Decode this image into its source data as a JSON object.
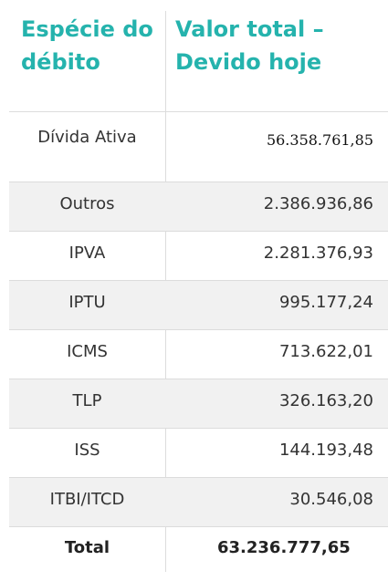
{
  "table": {
    "headers": [
      "Espécie do débito",
      "Valor total – Devido hoje"
    ],
    "rows": [
      {
        "label": "Dívida Ativa",
        "value": "56.358.761,85"
      },
      {
        "label": "Outros",
        "value": "2.386.936,86"
      },
      {
        "label": "IPVA",
        "value": "2.281.376,93"
      },
      {
        "label": "IPTU",
        "value": "995.177,24"
      },
      {
        "label": "ICMS",
        "value": "713.622,01"
      },
      {
        "label": "TLP",
        "value": "326.163,20"
      },
      {
        "label": "ISS",
        "value": "144.193,48"
      },
      {
        "label": "ITBI/ITCD",
        "value": "30.546,08"
      }
    ],
    "total": {
      "label": "Total",
      "value": "63.236.777,65"
    }
  },
  "colors": {
    "header_text": "#25b3ad",
    "row_shade": "#f1f1f1",
    "border": "#dcdcdc"
  }
}
